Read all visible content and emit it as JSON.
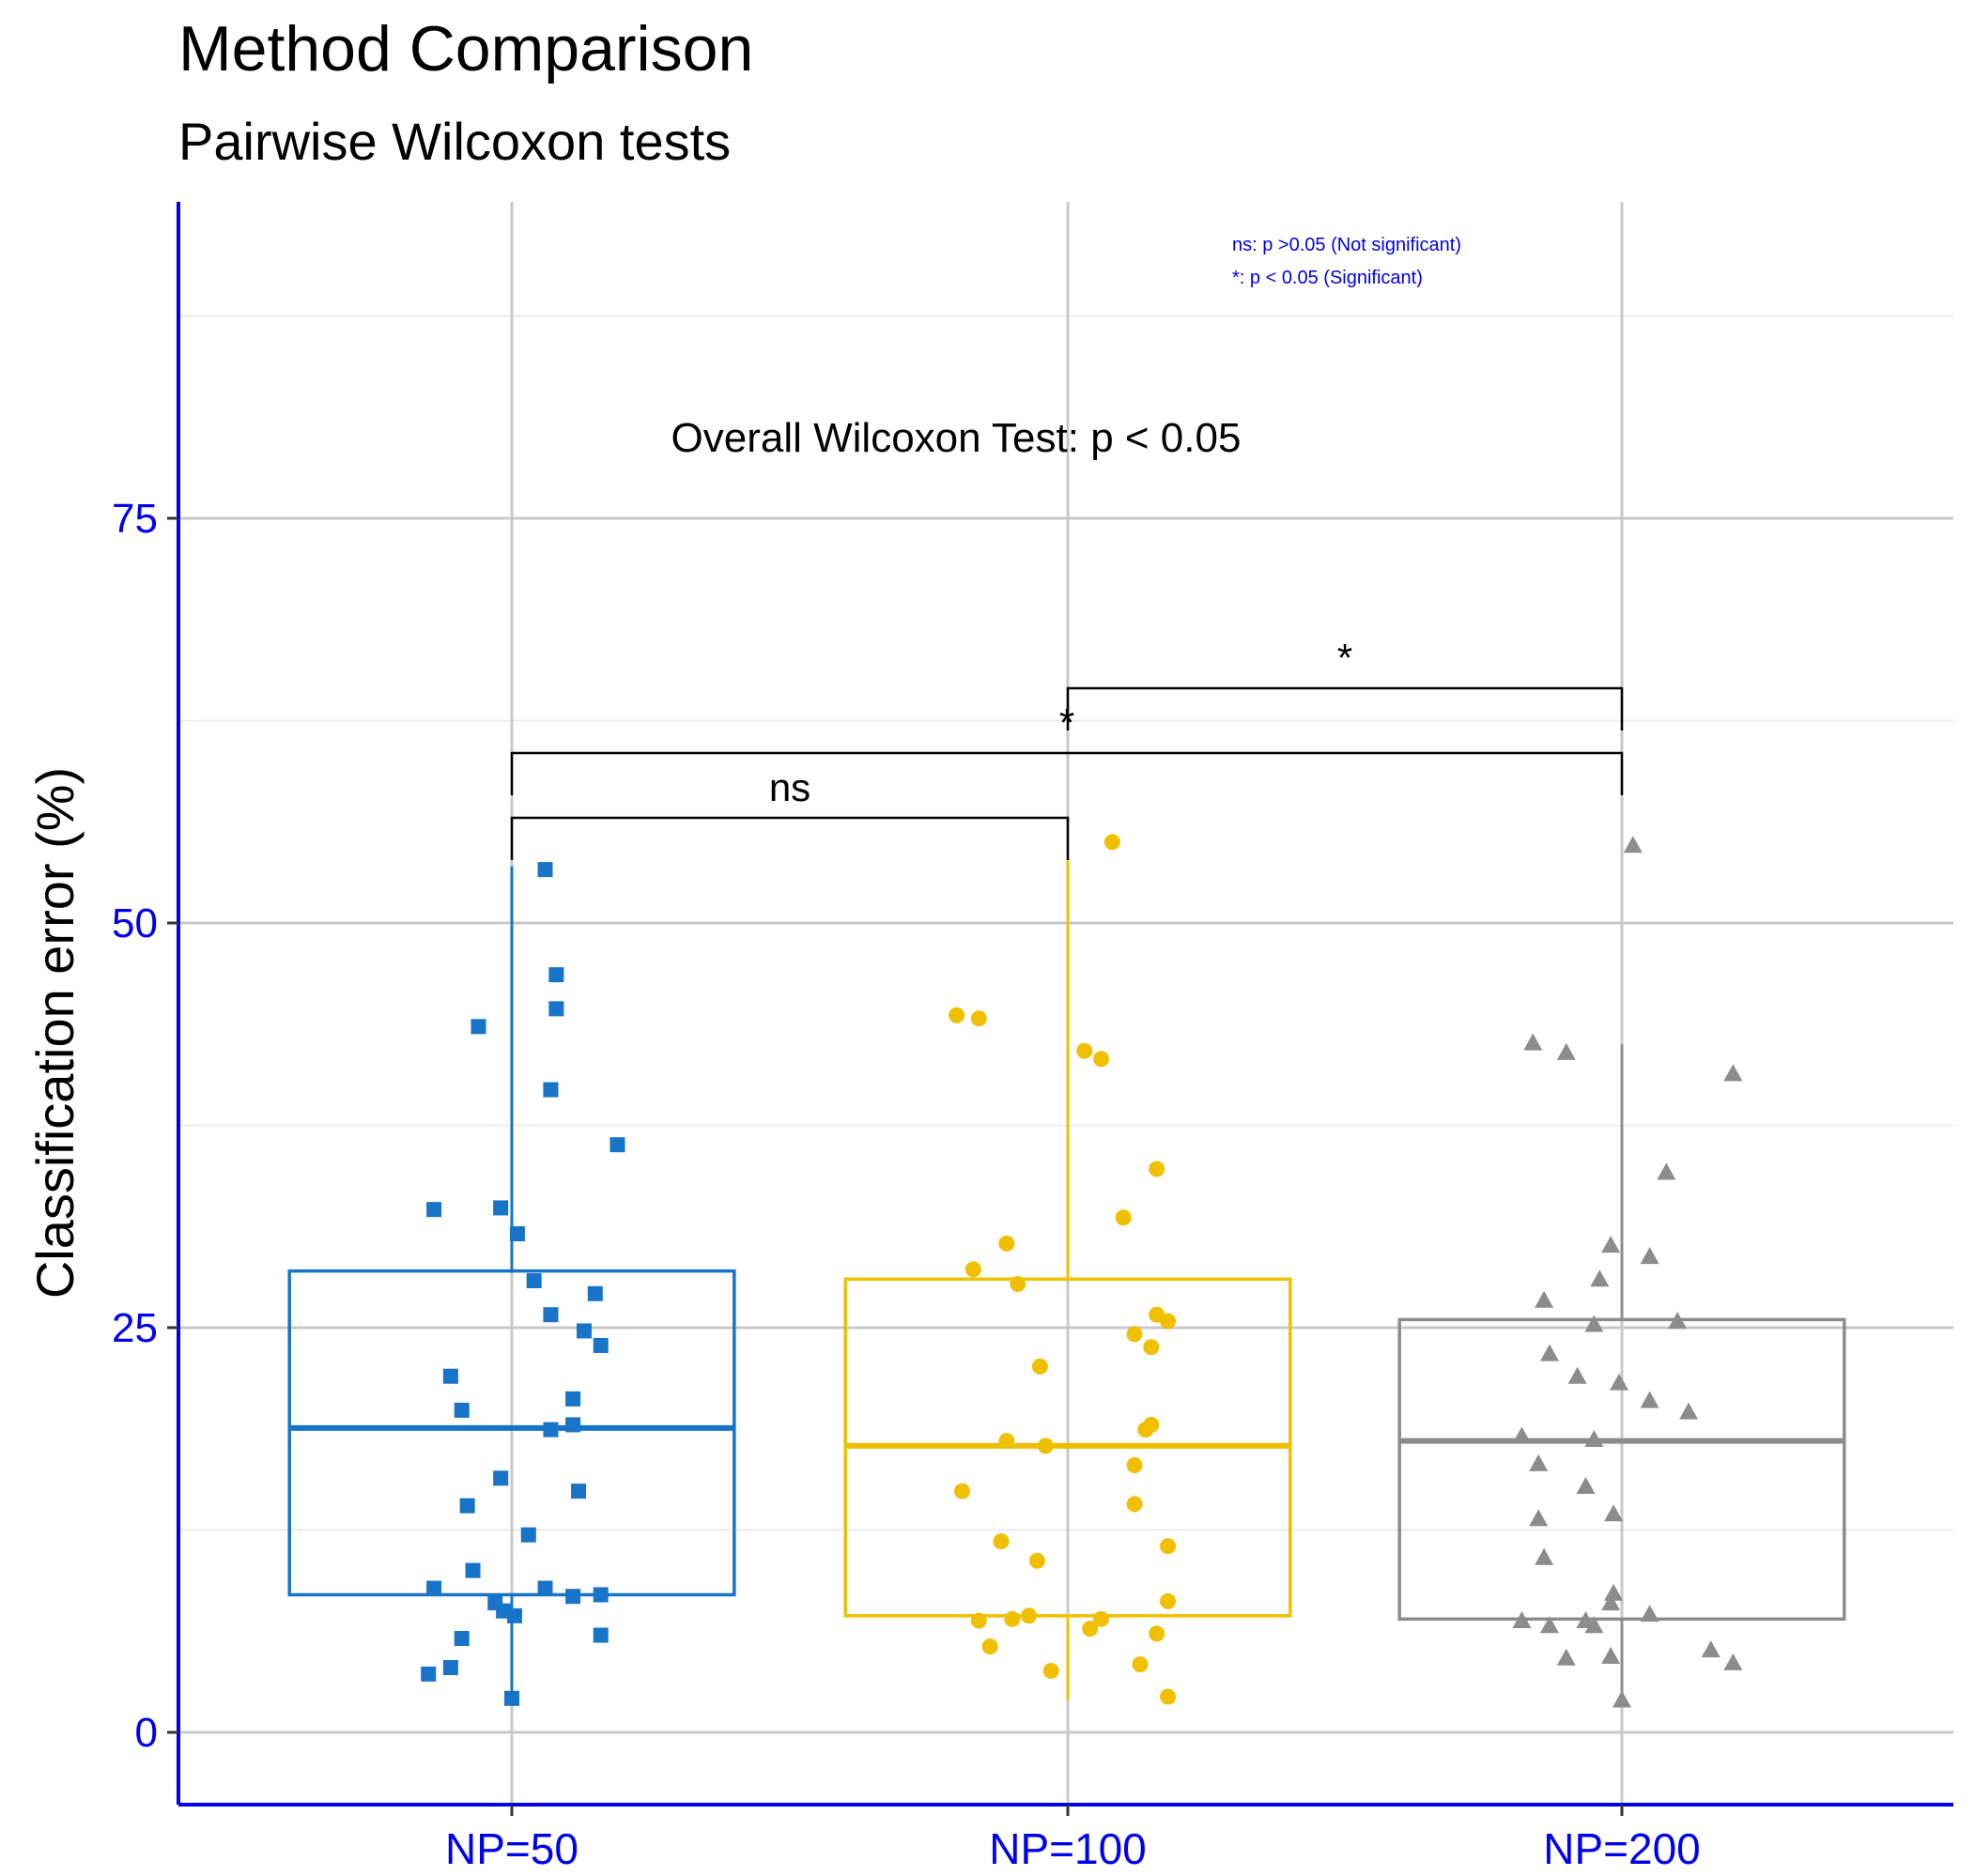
{
  "chart_data": {
    "type": "box",
    "title": "Method Comparison",
    "subtitle": "Pairwise Wilcoxon tests",
    "xlabel": "",
    "ylabel": "Classification error (%)",
    "ylim": [
      -7,
      94
    ],
    "yticks": [
      0,
      25,
      50,
      75
    ],
    "categories": [
      "NP=50",
      "NP=100",
      "NP=200"
    ],
    "axis_color": "#0000ee",
    "tick_label_color": "#0000ee",
    "grid": true,
    "annotation": "Overall Wilcoxon Test: p < 0.05",
    "legend_text": [
      "ns: p >0.05 (Not significant)",
      "*: p < 0.05 (Significant)"
    ],
    "legend_color": "#0000ee",
    "comparisons": [
      {
        "from": 0,
        "to": 1,
        "label": "ns",
        "y": 56.5
      },
      {
        "from": 0,
        "to": 2,
        "label": "*",
        "y": 60.5
      },
      {
        "from": 1,
        "to": 2,
        "label": "*",
        "y": 64.5
      }
    ],
    "series": [
      {
        "name": "NP=50",
        "color": "#1874c8",
        "marker": "square",
        "box": {
          "whisker_low": 2.5,
          "q1": 8.5,
          "median": 18.8,
          "q3": 28.5,
          "whisker_high": 53.5
        },
        "points": [
          {
            "dx": 0.06,
            "y": 53.3
          },
          {
            "dx": 0.08,
            "y": 46.8
          },
          {
            "dx": 0.08,
            "y": 44.7
          },
          {
            "dx": -0.06,
            "y": 43.6
          },
          {
            "dx": 0.07,
            "y": 39.7
          },
          {
            "dx": 0.19,
            "y": 36.3
          },
          {
            "dx": -0.14,
            "y": 32.3
          },
          {
            "dx": -0.02,
            "y": 32.4
          },
          {
            "dx": 0.01,
            "y": 30.8
          },
          {
            "dx": 0.04,
            "y": 27.9
          },
          {
            "dx": 0.15,
            "y": 27.1
          },
          {
            "dx": 0.07,
            "y": 25.8
          },
          {
            "dx": 0.13,
            "y": 24.8
          },
          {
            "dx": 0.16,
            "y": 23.9
          },
          {
            "dx": -0.11,
            "y": 22.0
          },
          {
            "dx": -0.09,
            "y": 19.9
          },
          {
            "dx": 0.11,
            "y": 20.6
          },
          {
            "dx": 0.11,
            "y": 19.0
          },
          {
            "dx": 0.07,
            "y": 18.7
          },
          {
            "dx": -0.02,
            "y": 15.7
          },
          {
            "dx": 0.12,
            "y": 14.9
          },
          {
            "dx": -0.08,
            "y": 14.0
          },
          {
            "dx": 0.03,
            "y": 12.2
          },
          {
            "dx": -0.07,
            "y": 10.0
          },
          {
            "dx": -0.14,
            "y": 8.9
          },
          {
            "dx": 0.06,
            "y": 8.9
          },
          {
            "dx": 0.11,
            "y": 8.4
          },
          {
            "dx": 0.16,
            "y": 8.5
          },
          {
            "dx": -0.03,
            "y": 8.0
          },
          {
            "dx": -0.015,
            "y": 7.5
          },
          {
            "dx": 0.005,
            "y": 7.2
          },
          {
            "dx": 0.16,
            "y": 6.0
          },
          {
            "dx": -0.09,
            "y": 5.8
          },
          {
            "dx": -0.11,
            "y": 4.0
          },
          {
            "dx": -0.15,
            "y": 3.6
          },
          {
            "dx": 0.0,
            "y": 2.1
          }
        ]
      },
      {
        "name": "NP=100",
        "color": "#f0c000",
        "marker": "circle",
        "box": {
          "whisker_low": 2.0,
          "q1": 7.2,
          "median": 17.7,
          "q3": 28.0,
          "whisker_high": 54.0
        },
        "points": [
          {
            "dx": 0.08,
            "y": 55.0
          },
          {
            "dx": -0.2,
            "y": 44.3
          },
          {
            "dx": -0.16,
            "y": 44.1
          },
          {
            "dx": 0.03,
            "y": 42.1
          },
          {
            "dx": 0.06,
            "y": 41.6
          },
          {
            "dx": 0.16,
            "y": 34.8
          },
          {
            "dx": 0.1,
            "y": 31.8
          },
          {
            "dx": -0.11,
            "y": 30.2
          },
          {
            "dx": -0.17,
            "y": 28.6
          },
          {
            "dx": -0.09,
            "y": 27.7
          },
          {
            "dx": 0.16,
            "y": 25.8
          },
          {
            "dx": 0.18,
            "y": 25.4
          },
          {
            "dx": 0.12,
            "y": 24.6
          },
          {
            "dx": 0.15,
            "y": 23.8
          },
          {
            "dx": -0.05,
            "y": 22.6
          },
          {
            "dx": 0.15,
            "y": 19.0
          },
          {
            "dx": 0.14,
            "y": 18.7
          },
          {
            "dx": -0.11,
            "y": 18.0
          },
          {
            "dx": -0.04,
            "y": 17.7
          },
          {
            "dx": 0.12,
            "y": 16.5
          },
          {
            "dx": -0.19,
            "y": 14.9
          },
          {
            "dx": 0.12,
            "y": 14.1
          },
          {
            "dx": -0.12,
            "y": 11.8
          },
          {
            "dx": 0.18,
            "y": 11.5
          },
          {
            "dx": -0.055,
            "y": 10.6
          },
          {
            "dx": 0.18,
            "y": 8.1
          },
          {
            "dx": -0.16,
            "y": 6.9
          },
          {
            "dx": -0.1,
            "y": 7.0
          },
          {
            "dx": -0.07,
            "y": 7.2
          },
          {
            "dx": 0.06,
            "y": 7.0
          },
          {
            "dx": 0.04,
            "y": 6.4
          },
          {
            "dx": 0.16,
            "y": 6.1
          },
          {
            "dx": -0.14,
            "y": 5.3
          },
          {
            "dx": 0.13,
            "y": 4.2
          },
          {
            "dx": -0.03,
            "y": 3.8
          },
          {
            "dx": 0.18,
            "y": 2.2
          }
        ]
      },
      {
        "name": "NP=200",
        "color": "#8c8c8c",
        "marker": "triangle",
        "box": {
          "whisker_low": 2.0,
          "q1": 7.0,
          "median": 18.0,
          "q3": 25.5,
          "whisker_high": 42.5
        },
        "points": [
          {
            "dx": 0.02,
            "y": 54.8
          },
          {
            "dx": -0.16,
            "y": 42.6
          },
          {
            "dx": -0.1,
            "y": 42.0
          },
          {
            "dx": 0.2,
            "y": 40.7
          },
          {
            "dx": 0.08,
            "y": 34.6
          },
          {
            "dx": -0.02,
            "y": 30.1
          },
          {
            "dx": 0.05,
            "y": 29.4
          },
          {
            "dx": -0.04,
            "y": 28.0
          },
          {
            "dx": -0.14,
            "y": 26.7
          },
          {
            "dx": 0.1,
            "y": 25.4
          },
          {
            "dx": -0.05,
            "y": 25.2
          },
          {
            "dx": -0.13,
            "y": 23.4
          },
          {
            "dx": -0.08,
            "y": 22.0
          },
          {
            "dx": -0.005,
            "y": 21.6
          },
          {
            "dx": 0.05,
            "y": 20.5
          },
          {
            "dx": 0.12,
            "y": 19.8
          },
          {
            "dx": -0.18,
            "y": 18.3
          },
          {
            "dx": -0.05,
            "y": 18.1
          },
          {
            "dx": -0.15,
            "y": 16.6
          },
          {
            "dx": -0.065,
            "y": 15.2
          },
          {
            "dx": -0.015,
            "y": 13.5
          },
          {
            "dx": -0.15,
            "y": 13.2
          },
          {
            "dx": -0.14,
            "y": 10.8
          },
          {
            "dx": -0.015,
            "y": 8.6
          },
          {
            "dx": -0.02,
            "y": 8.0
          },
          {
            "dx": 0.05,
            "y": 7.3
          },
          {
            "dx": -0.18,
            "y": 6.9
          },
          {
            "dx": -0.13,
            "y": 6.6
          },
          {
            "dx": -0.065,
            "y": 6.9
          },
          {
            "dx": -0.05,
            "y": 6.6
          },
          {
            "dx": -0.1,
            "y": 4.6
          },
          {
            "dx": -0.02,
            "y": 4.7
          },
          {
            "dx": 0.16,
            "y": 5.1
          },
          {
            "dx": 0.2,
            "y": 4.3
          },
          {
            "dx": 0.0,
            "y": 2.0
          }
        ]
      }
    ]
  }
}
